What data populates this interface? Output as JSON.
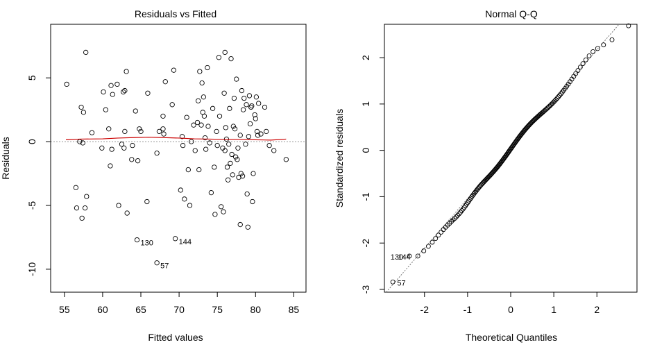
{
  "chart_data": [
    {
      "type": "scatter",
      "title": "Residuals vs Fitted",
      "xlabel": "Fitted values",
      "ylabel": "Residuals",
      "xlim": [
        53.2,
        86.6
      ],
      "ylim": [
        -11.8,
        9.2
      ],
      "xticks": [
        55,
        60,
        65,
        70,
        75,
        80,
        85
      ],
      "xtick_labels": [
        "55",
        "60",
        "65",
        "70",
        "75",
        "80",
        "85"
      ],
      "yticks": [
        -10,
        -5,
        0,
        5
      ],
      "ytick_labels": [
        "-10",
        "-5",
        "0",
        "5"
      ],
      "reference_line_y": 0,
      "smooth_color": "#cc0000",
      "smooth": [
        [
          55.2,
          0.15
        ],
        [
          57,
          0.2
        ],
        [
          60,
          0.22
        ],
        [
          62,
          0.28
        ],
        [
          64,
          0.32
        ],
        [
          66,
          0.35
        ],
        [
          68,
          0.32
        ],
        [
          70,
          0.28
        ],
        [
          72,
          0.22
        ],
        [
          74,
          0.2
        ],
        [
          76,
          0.18
        ],
        [
          78,
          0.18
        ],
        [
          80,
          0.15
        ],
        [
          82,
          0.12
        ],
        [
          84,
          0.2
        ]
      ],
      "points": [
        [
          55.3,
          4.5
        ],
        [
          56.5,
          -3.6
        ],
        [
          56.6,
          -5.2
        ],
        [
          57.0,
          0.0
        ],
        [
          57.2,
          2.7
        ],
        [
          57.3,
          -6.0
        ],
        [
          57.4,
          -0.1
        ],
        [
          57.5,
          2.3
        ],
        [
          57.7,
          -5.2
        ],
        [
          57.8,
          7.0
        ],
        [
          57.9,
          -4.3
        ],
        [
          58.6,
          0.7
        ],
        [
          59.9,
          -0.5
        ],
        [
          60.1,
          3.9
        ],
        [
          60.4,
          2.5
        ],
        [
          60.8,
          1.0
        ],
        [
          61.0,
          -1.9
        ],
        [
          61.1,
          4.4
        ],
        [
          61.2,
          -0.6
        ],
        [
          61.3,
          3.7
        ],
        [
          61.9,
          4.5
        ],
        [
          62.1,
          -5.0
        ],
        [
          62.5,
          -0.2
        ],
        [
          62.7,
          3.9
        ],
        [
          62.8,
          -0.5
        ],
        [
          62.9,
          4.0
        ],
        [
          62.9,
          0.8
        ],
        [
          63.1,
          5.5
        ],
        [
          63.2,
          -5.6
        ],
        [
          63.8,
          -1.4
        ],
        [
          63.9,
          -0.3
        ],
        [
          64.3,
          2.4
        ],
        [
          64.8,
          1.0
        ],
        [
          64.6,
          -1.5
        ],
        [
          65.0,
          0.8
        ],
        [
          65.8,
          -4.7
        ],
        [
          65.9,
          3.8
        ],
        [
          67.1,
          -0.9
        ],
        [
          67.4,
          0.8
        ],
        [
          67.9,
          1.0
        ],
        [
          67.9,
          2.0
        ],
        [
          68.0,
          0.6
        ],
        [
          68.2,
          4.7
        ],
        [
          69.1,
          2.9
        ],
        [
          69.3,
          5.6
        ],
        [
          70.2,
          -3.8
        ],
        [
          70.4,
          0.4
        ],
        [
          70.5,
          -0.3
        ],
        [
          70.7,
          -4.5
        ],
        [
          71.0,
          1.9
        ],
        [
          71.2,
          -2.2
        ],
        [
          71.4,
          -5.0
        ],
        [
          71.6,
          0.0
        ],
        [
          71.9,
          1.3
        ],
        [
          72.1,
          -0.7
        ],
        [
          72.4,
          1.5
        ],
        [
          72.5,
          3.2
        ],
        [
          72.6,
          -2.2
        ],
        [
          72.7,
          5.5
        ],
        [
          72.9,
          1.3
        ],
        [
          73.0,
          4.6
        ],
        [
          73.1,
          2.3
        ],
        [
          73.2,
          3.5
        ],
        [
          73.3,
          2.0
        ],
        [
          73.4,
          0.3
        ],
        [
          73.5,
          -0.6
        ],
        [
          73.7,
          5.8
        ],
        [
          73.8,
          1.2
        ],
        [
          74.0,
          -0.1
        ],
        [
          74.2,
          -4.0
        ],
        [
          74.4,
          2.6
        ],
        [
          74.6,
          -2.0
        ],
        [
          74.7,
          -5.7
        ],
        [
          74.9,
          0.8
        ],
        [
          75.0,
          -0.3
        ],
        [
          75.2,
          6.6
        ],
        [
          75.3,
          2.0
        ],
        [
          75.5,
          -5.1
        ],
        [
          75.7,
          -0.5
        ],
        [
          75.8,
          -5.5
        ],
        [
          75.9,
          3.8
        ],
        [
          76.0,
          7.0
        ],
        [
          76.0,
          -0.7
        ],
        [
          76.1,
          1.1
        ],
        [
          76.2,
          0.2
        ],
        [
          76.3,
          -2.0
        ],
        [
          76.4,
          -3.0
        ],
        [
          76.5,
          -0.2
        ],
        [
          76.6,
          2.6
        ],
        [
          76.7,
          -1.7
        ],
        [
          76.8,
          6.5
        ],
        [
          76.9,
          -1.0
        ],
        [
          77.0,
          -2.6
        ],
        [
          77.1,
          1.2
        ],
        [
          77.2,
          3.4
        ],
        [
          77.3,
          1.0
        ],
        [
          77.4,
          -1.2
        ],
        [
          77.5,
          4.9
        ],
        [
          77.6,
          -1.4
        ],
        [
          77.7,
          -0.5
        ],
        [
          77.8,
          -2.8
        ],
        [
          78.0,
          0.5
        ],
        [
          78.0,
          -6.5
        ],
        [
          78.1,
          -2.5
        ],
        [
          78.2,
          4.0
        ],
        [
          78.3,
          -2.7
        ],
        [
          78.4,
          2.5
        ],
        [
          78.5,
          3.4
        ],
        [
          78.7,
          -0.2
        ],
        [
          78.8,
          2.9
        ],
        [
          78.9,
          -4.1
        ],
        [
          79.0,
          -6.7
        ],
        [
          79.1,
          0.4
        ],
        [
          79.2,
          3.6
        ],
        [
          79.3,
          1.4
        ],
        [
          79.4,
          2.7
        ],
        [
          79.5,
          2.8
        ],
        [
          79.6,
          -4.7
        ],
        [
          79.7,
          -2.5
        ],
        [
          79.9,
          2.1
        ],
        [
          80.0,
          1.8
        ],
        [
          80.1,
          3.5
        ],
        [
          80.2,
          0.8
        ],
        [
          80.3,
          0.5
        ],
        [
          80.4,
          3.0
        ],
        [
          80.7,
          0.6
        ],
        [
          81.2,
          2.7
        ],
        [
          81.4,
          0.8
        ],
        [
          81.8,
          -0.3
        ],
        [
          82.4,
          -0.7
        ],
        [
          84.0,
          -1.4
        ],
        [
          64.5,
          -7.7
        ],
        [
          67.1,
          -9.5
        ],
        [
          69.5,
          -7.6
        ]
      ],
      "labeled_points": [
        {
          "label": "130",
          "x": 64.5,
          "y": -7.7
        },
        {
          "label": "144",
          "x": 69.5,
          "y": -7.6
        },
        {
          "label": "57",
          "x": 67.1,
          "y": -9.5
        }
      ]
    },
    {
      "type": "scatter",
      "title": "Normal Q-Q",
      "xlabel": "Theoretical Quantiles",
      "ylabel": "Standardized residuals",
      "xlim": [
        -2.93,
        2.93
      ],
      "ylim": [
        -3.06,
        2.72
      ],
      "xticks": [
        -2,
        -1,
        0,
        1,
        2
      ],
      "xtick_labels": [
        "-2",
        "-1",
        "0",
        "1",
        "2"
      ],
      "yticks": [
        -3,
        -2,
        -1,
        0,
        1,
        2
      ],
      "ytick_labels": [
        "-3",
        "-2",
        "-1",
        "0",
        "1",
        "2"
      ],
      "reference_line": {
        "slope": 1.07,
        "intercept": 0.03
      },
      "n_points": 160,
      "labeled_points": [
        {
          "label": "130",
          "x": -2.37,
          "y": -2.28
        },
        {
          "label": "144",
          "x": -2.2,
          "y": -2.28
        },
        {
          "label": "57",
          "x": -2.73,
          "y": -2.84
        }
      ]
    }
  ]
}
